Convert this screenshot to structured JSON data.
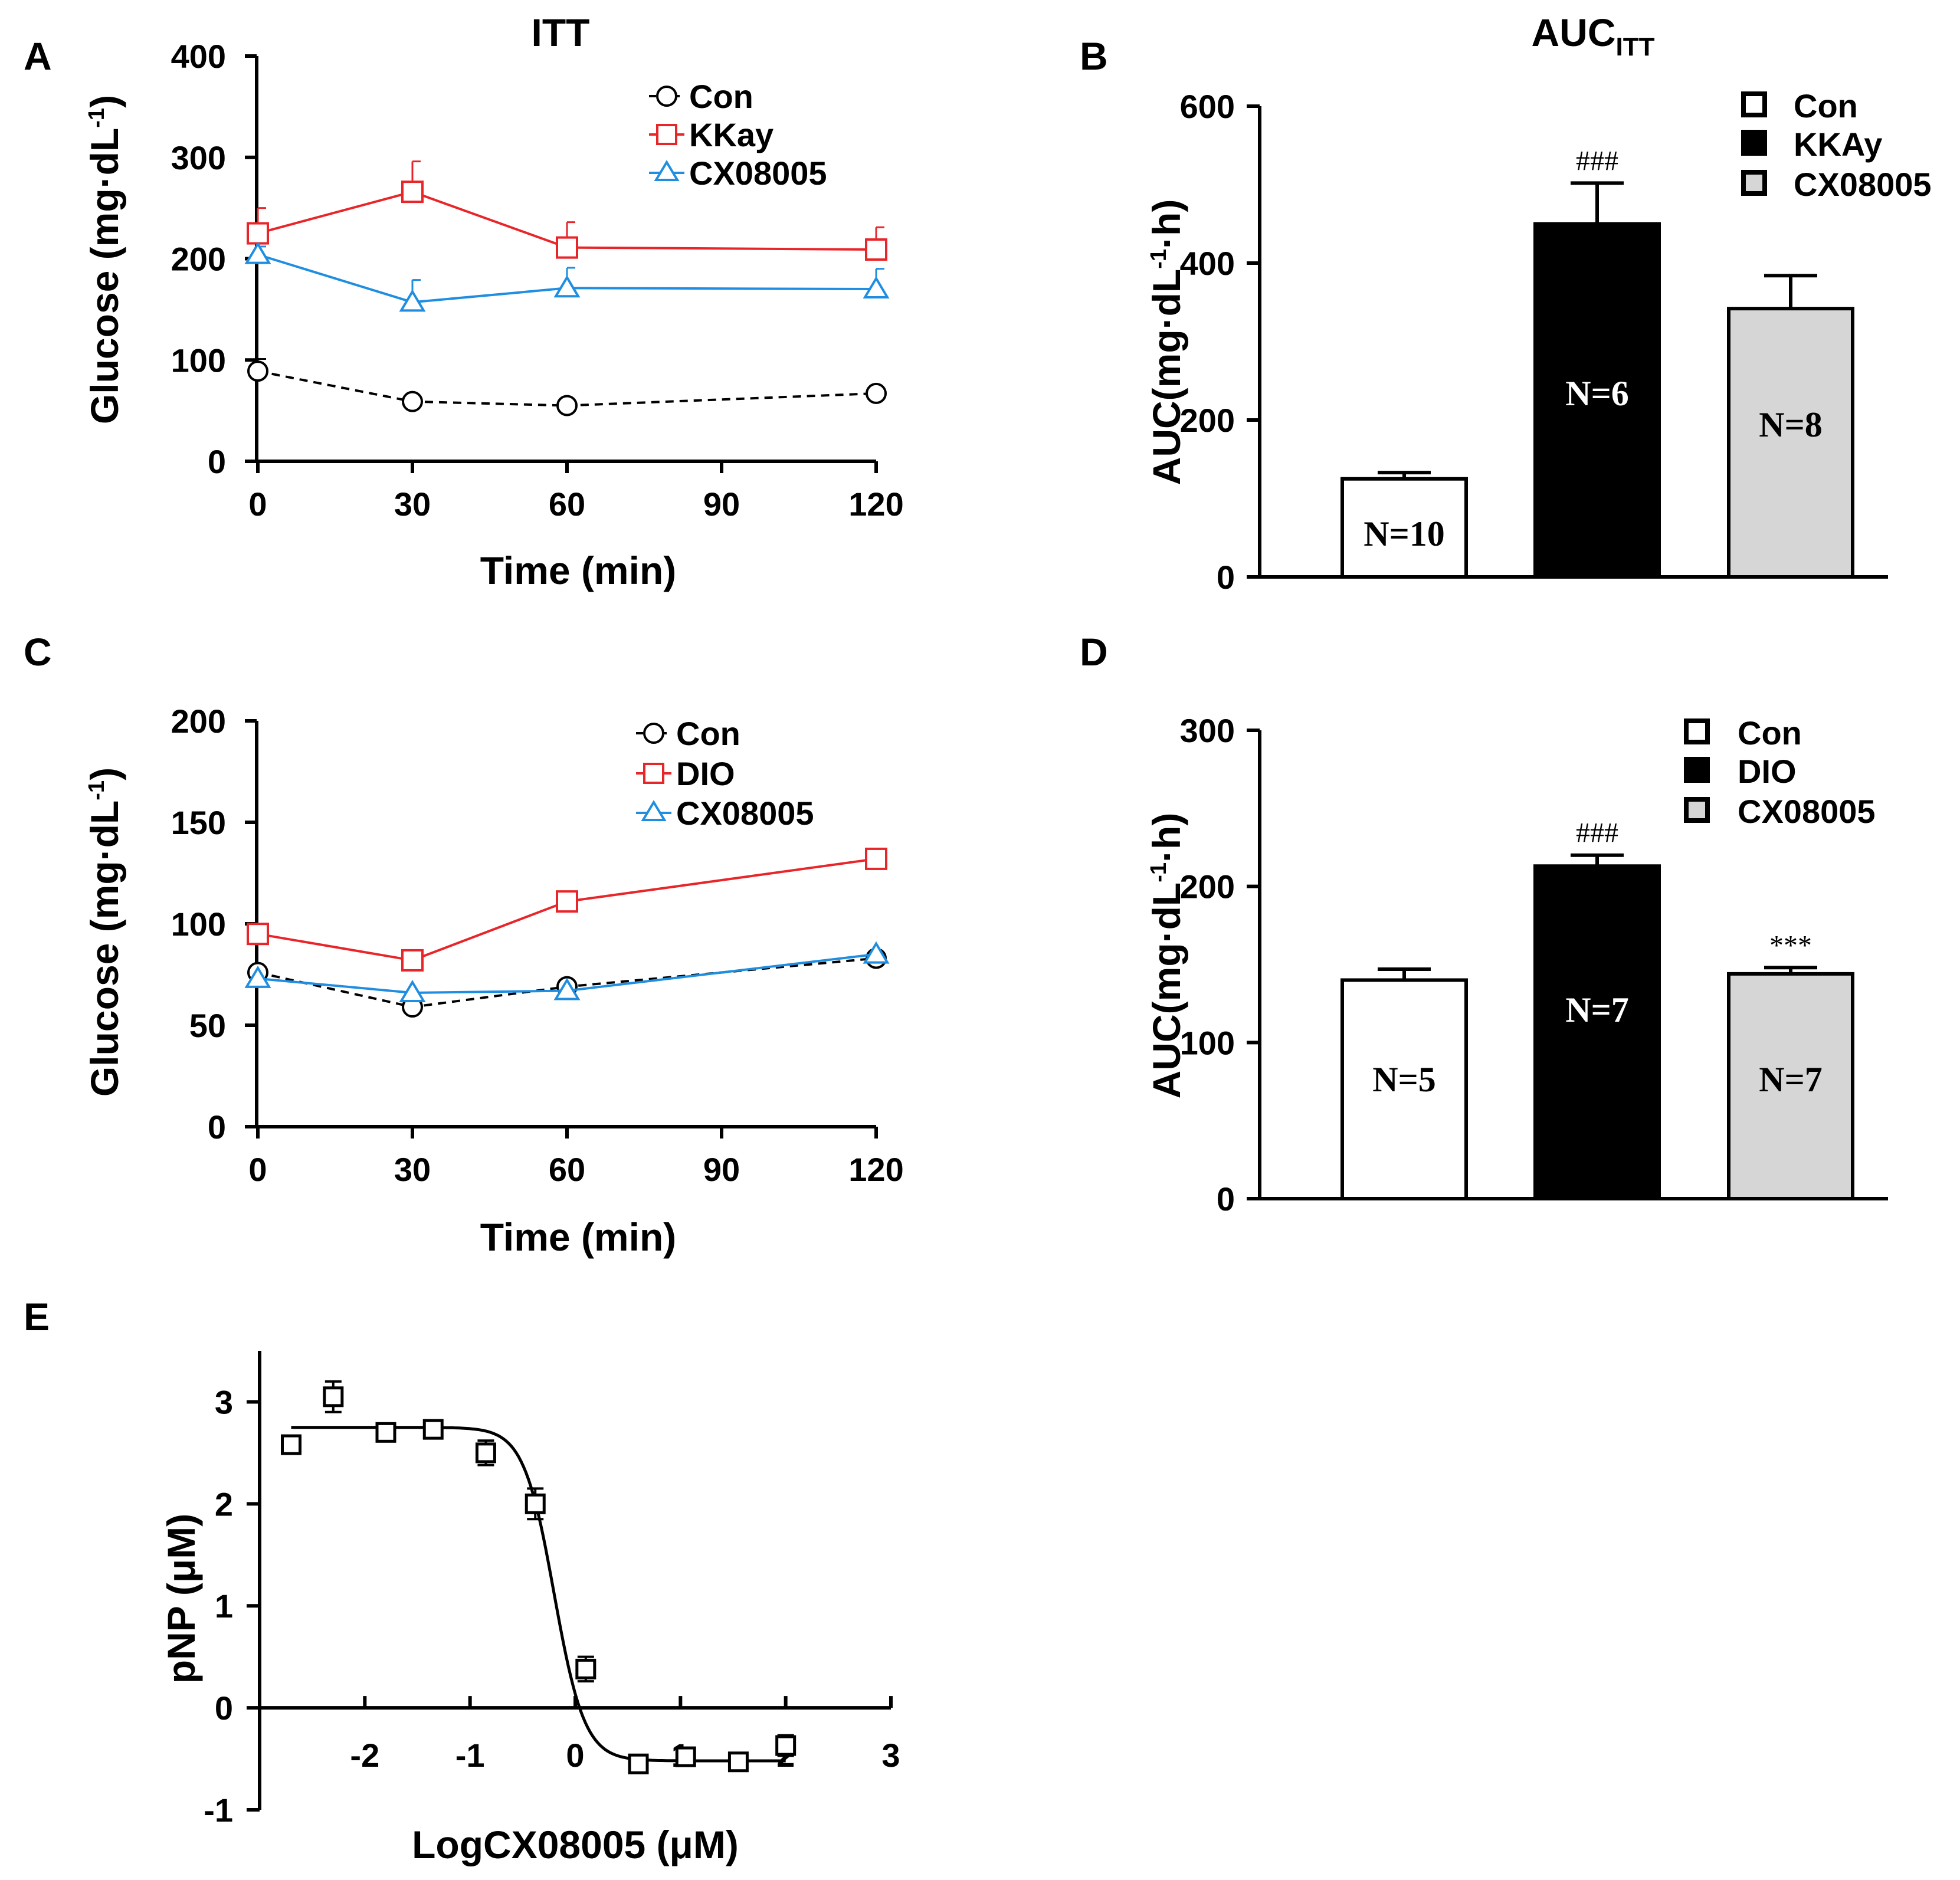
{
  "colors": {
    "con": "#000000",
    "kkay": "#e8262a",
    "cx": "#1f8ee0",
    "bar_con": "#ffffff",
    "bar_kkay": "#000000",
    "bar_cx": "#d6d6d6"
  },
  "chart_data": [
    {
      "id": "A",
      "type": "line",
      "panel_label": "A",
      "title": "ITT",
      "xlabel": "Time (min)",
      "ylabel_main": "Glucose (mg·dL",
      "ylabel_sup": "-1",
      "ylabel_end": ")",
      "xlim": [
        0,
        120
      ],
      "ylim": [
        0,
        400
      ],
      "xticks": [
        0,
        30,
        60,
        90,
        120
      ],
      "yticks": [
        0,
        100,
        200,
        300,
        400
      ],
      "x": [
        0,
        30,
        60,
        120
      ],
      "series": [
        {
          "name": "Con",
          "color": "#000000",
          "marker": "circle",
          "dashed": true,
          "values": [
            89,
            59,
            55,
            67
          ],
          "errors": [
            12,
            4,
            3,
            4
          ]
        },
        {
          "name": "KKay",
          "color": "#e8262a",
          "marker": "square",
          "dashed": false,
          "values": [
            225,
            266,
            211,
            209
          ],
          "errors": [
            25,
            30,
            25,
            22
          ]
        },
        {
          "name": "CX08005",
          "color": "#1f8ee0",
          "marker": "triangle",
          "dashed": false,
          "values": [
            204,
            157,
            171,
            170
          ],
          "errors": [
            8,
            22,
            20,
            20
          ]
        }
      ]
    },
    {
      "id": "B",
      "type": "bar",
      "panel_label": "B",
      "title_main": "AUC",
      "title_sub": "ITT",
      "ylabel_main": "AUC(mg·dL",
      "ylabel_sup": "-1",
      "ylabel_end": "·h)",
      "ylim": [
        0,
        600
      ],
      "yticks": [
        0,
        200,
        400,
        600
      ],
      "categories": [
        "Con",
        "KKAy",
        "CX08005"
      ],
      "values": [
        125,
        450,
        342
      ],
      "errors": [
        8,
        52,
        42
      ],
      "n_labels": [
        "N=10",
        "N=6",
        "N=8"
      ],
      "significance": [
        "",
        "###",
        ""
      ],
      "fills": [
        "#ffffff",
        "#000000",
        "#d6d6d6"
      ]
    },
    {
      "id": "C",
      "type": "line",
      "panel_label": "C",
      "xlabel": "Time (min)",
      "ylabel_main": "Glucose (mg·dL",
      "ylabel_sup": "-1",
      "ylabel_end": ")",
      "xlim": [
        0,
        120
      ],
      "ylim": [
        0,
        200
      ],
      "xticks": [
        0,
        30,
        60,
        90,
        120
      ],
      "yticks": [
        0,
        50,
        100,
        150,
        200
      ],
      "x": [
        0,
        30,
        60,
        120
      ],
      "series": [
        {
          "name": "Con",
          "color": "#000000",
          "marker": "circle",
          "dashed": true,
          "values": [
            76,
            59,
            69,
            83
          ],
          "errors": [
            0,
            0,
            0,
            0
          ]
        },
        {
          "name": "DIO",
          "color": "#e8262a",
          "marker": "square",
          "dashed": false,
          "values": [
            95,
            82,
            111,
            132
          ],
          "errors": [
            0,
            0,
            0,
            0
          ]
        },
        {
          "name": "CX08005",
          "color": "#1f8ee0",
          "marker": "triangle",
          "dashed": false,
          "values": [
            73,
            66,
            67,
            85
          ],
          "errors": [
            0,
            0,
            0,
            0
          ]
        }
      ]
    },
    {
      "id": "D",
      "type": "bar",
      "panel_label": "D",
      "ylabel_main": "AUC(mg·dL",
      "ylabel_sup": "-1",
      "ylabel_end": "·h)",
      "ylim": [
        0,
        300
      ],
      "yticks": [
        0,
        100,
        200,
        300
      ],
      "categories": [
        "Con",
        "DIO",
        "CX08005"
      ],
      "values": [
        140,
        213,
        144
      ],
      "errors": [
        7,
        7,
        4
      ],
      "n_labels": [
        "N=5",
        "N=7",
        "N=7"
      ],
      "significance": [
        "",
        "###",
        "***"
      ],
      "fills": [
        "#ffffff",
        "#000000",
        "#d6d6d6"
      ]
    },
    {
      "id": "E",
      "type": "scatter",
      "panel_label": "E",
      "xlabel": "LogCX08005 (μM)",
      "ylabel": "pNP (μM)",
      "xlim": [
        -3,
        3
      ],
      "ylim": [
        -1,
        3.5
      ],
      "xticks": [
        -2,
        -1,
        0,
        1,
        2,
        3
      ],
      "yticks": [
        -1,
        0,
        1,
        2,
        3
      ],
      "x": [
        -2.7,
        -2.3,
        -1.8,
        -1.35,
        -0.85,
        -0.38,
        0.1,
        0.6,
        1.05,
        1.55,
        2.0
      ],
      "values": [
        2.58,
        3.05,
        2.7,
        2.73,
        2.5,
        2.0,
        0.38,
        -0.55,
        -0.48,
        -0.53,
        -0.37
      ],
      "errors": [
        0.05,
        0.15,
        0.07,
        0.06,
        0.12,
        0.15,
        0.12,
        0.03,
        0.05,
        0.03,
        0.1
      ],
      "fit": {
        "top": 2.75,
        "bottom": -0.52,
        "logIC50": -0.2,
        "hill": 3.0
      }
    }
  ]
}
